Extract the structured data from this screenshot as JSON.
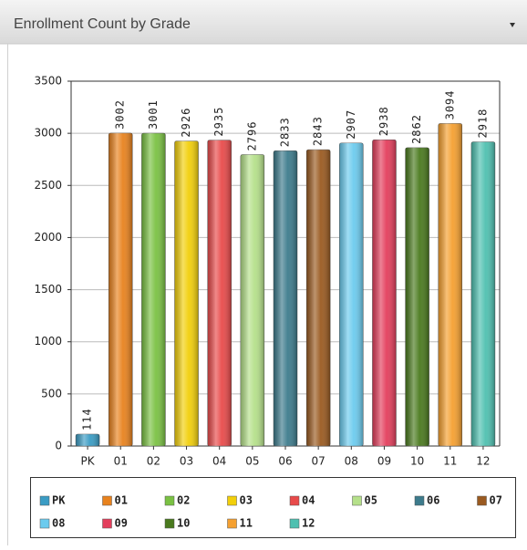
{
  "header": {
    "title": "Enrollment Count by Grade"
  },
  "chart_data": {
    "type": "bar",
    "categories": [
      "PK",
      "01",
      "02",
      "03",
      "04",
      "05",
      "06",
      "07",
      "08",
      "09",
      "10",
      "11",
      "12"
    ],
    "values": [
      114,
      3002,
      3001,
      2926,
      2935,
      2796,
      2833,
      2843,
      2907,
      2938,
      2862,
      3094,
      2918
    ],
    "colors": [
      "#3a9cc4",
      "#e8821e",
      "#7ac143",
      "#f2cf0a",
      "#e84a4a",
      "#b5e08a",
      "#3d7b8c",
      "#9a5a20",
      "#6ccbee",
      "#e33e5c",
      "#4a7a1e",
      "#f5a030",
      "#4fc0b0"
    ],
    "ylim": [
      0,
      3500
    ],
    "yticks": [
      0,
      500,
      1000,
      1500,
      2000,
      2500,
      3000,
      3500
    ],
    "grid": true
  }
}
